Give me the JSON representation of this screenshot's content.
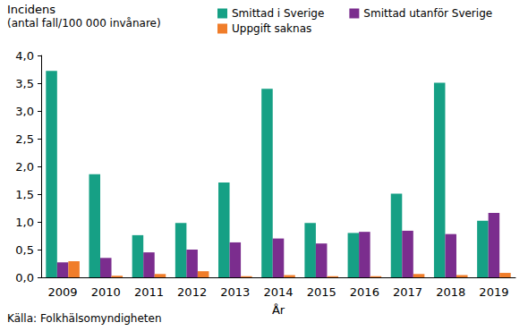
{
  "chart_data": {
    "type": "bar",
    "ylabel": [
      "Incidens",
      "(antal fall/100 000 invånare)"
    ],
    "xlabel": "År",
    "annotations": [
      "Källa: Folkhälsomyndigheten"
    ],
    "categories": [
      "2009",
      "2010",
      "2011",
      "2012",
      "2013",
      "2014",
      "2015",
      "2016",
      "2017",
      "2018",
      "2019"
    ],
    "series": [
      {
        "name": "Smittad i Sverige",
        "color": "#16a085",
        "values": [
          3.72,
          1.86,
          0.76,
          0.98,
          1.71,
          3.4,
          0.98,
          0.8,
          1.51,
          3.51,
          1.02
        ]
      },
      {
        "name": "Smittad utanför Sverige",
        "color": "#7b2d8e",
        "values": [
          0.27,
          0.35,
          0.45,
          0.5,
          0.63,
          0.7,
          0.61,
          0.82,
          0.84,
          0.78,
          1.16
        ]
      },
      {
        "name": "Uppgift saknas",
        "color": "#f07d2a",
        "values": [
          0.29,
          0.03,
          0.06,
          0.11,
          0.02,
          0.04,
          0.02,
          0.02,
          0.06,
          0.04,
          0.08
        ]
      }
    ],
    "ylim": [
      0,
      4
    ],
    "yticks": [
      {
        "value": 0,
        "label": "0,0"
      },
      {
        "value": 0.5,
        "label": "0,5"
      },
      {
        "value": 1,
        "label": "1,0"
      },
      {
        "value": 1.5,
        "label": "1,5"
      },
      {
        "value": 2,
        "label": "2,0"
      },
      {
        "value": 2.5,
        "label": "2,5"
      },
      {
        "value": 3,
        "label": "3,0"
      },
      {
        "value": 3.5,
        "label": "3,5"
      },
      {
        "value": 4,
        "label": "4,0"
      }
    ],
    "grid": false,
    "legend": "upper right"
  }
}
